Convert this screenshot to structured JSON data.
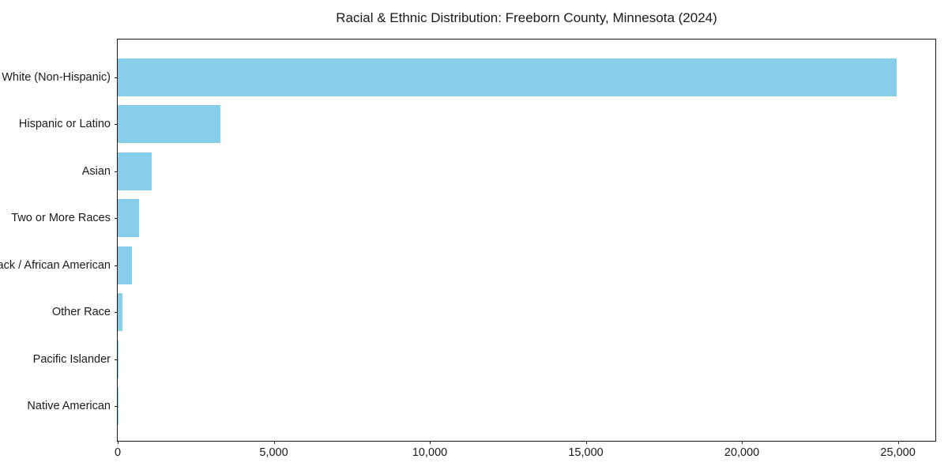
{
  "title": "Racial & Ethnic Distribution: Freeborn County, Minnesota (2024)",
  "colors": {
    "bar": "#87CEEB",
    "axis": "#1a1a1a",
    "text": "#1a1a1a",
    "background": "#ffffff"
  },
  "chart_data": {
    "type": "bar",
    "orientation": "horizontal",
    "title": "Racial & Ethnic Distribution: Freeborn County, Minnesota (2024)",
    "categories": [
      "White (Non-Hispanic)",
      "Hispanic or Latino",
      "Asian",
      "Two or More Races",
      "Black / African American",
      "Other Race",
      "Pacific Islander",
      "Native American"
    ],
    "values": [
      24950,
      3300,
      1080,
      680,
      450,
      150,
      20,
      10
    ],
    "xlabel": "",
    "ylabel": "",
    "xlim": [
      0,
      26200
    ],
    "x_ticks": [
      0,
      5000,
      10000,
      15000,
      20000,
      25000
    ],
    "x_tick_labels": [
      "0",
      "5,000",
      "10,000",
      "15,000",
      "20,000",
      "25,000"
    ],
    "grid": false,
    "legend": false,
    "bar_color": "#87CEEB",
    "sort_order": "descending"
  }
}
